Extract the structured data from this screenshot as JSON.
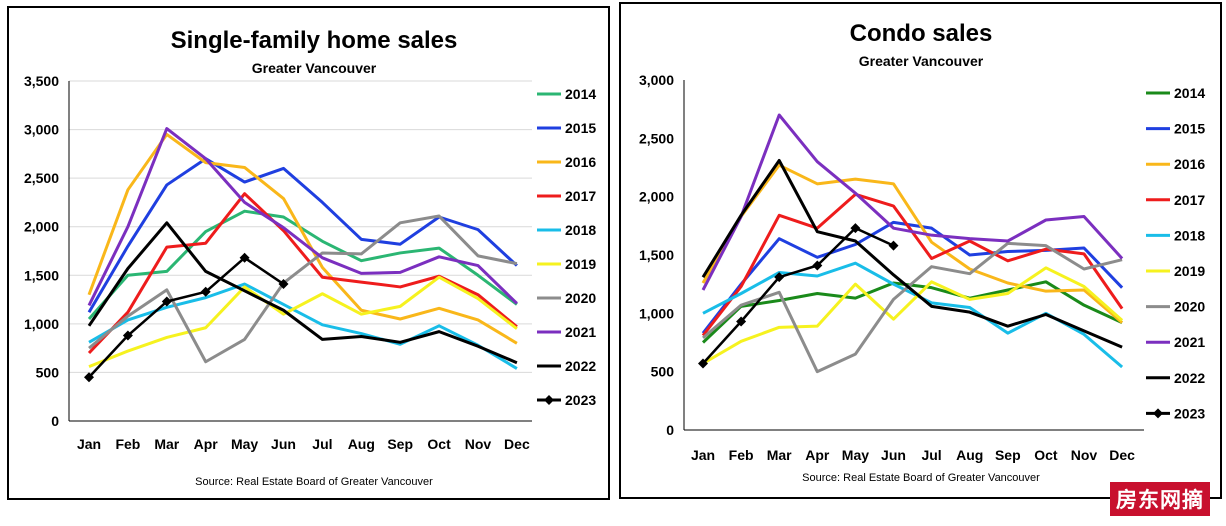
{
  "months": [
    "Jan",
    "Feb",
    "Mar",
    "Apr",
    "May",
    "Jun",
    "Jul",
    "Aug",
    "Sep",
    "Oct",
    "Nov",
    "Dec"
  ],
  "chart_data": [
    {
      "type": "line",
      "title": "Single-family home sales",
      "subtitle": "Greater Vancouver",
      "source": "Source: Real Estate Board of Greater Vancouver",
      "ylim": [
        0,
        3500
      ],
      "yticks": [
        0,
        500,
        1000,
        1500,
        2000,
        2500,
        3000,
        3500
      ],
      "ytick_labels": [
        "0",
        "500",
        "1,000",
        "1,500",
        "2,000",
        "2,500",
        "3,000",
        "3,500"
      ],
      "grid": true,
      "legend_position": "right",
      "series": [
        {
          "name": "2014",
          "color": "#2bb673",
          "values": [
            1050,
            1500,
            1540,
            1950,
            2160,
            2100,
            1850,
            1650,
            1730,
            1780,
            1500,
            1200
          ]
        },
        {
          "name": "2015",
          "color": "#1f3fe0",
          "values": [
            1120,
            1800,
            2430,
            2700,
            2460,
            2600,
            2250,
            1870,
            1820,
            2100,
            1970,
            1600
          ]
        },
        {
          "name": "2016",
          "color": "#f9b71a",
          "values": [
            1300,
            2380,
            2950,
            2660,
            2610,
            2290,
            1580,
            1140,
            1050,
            1160,
            1040,
            800
          ]
        },
        {
          "name": "2017",
          "color": "#ee1c1c",
          "values": [
            700,
            1120,
            1790,
            1830,
            2340,
            1960,
            1480,
            1430,
            1380,
            1490,
            1300,
            970
          ]
        },
        {
          "name": "2018",
          "color": "#19bde8",
          "values": [
            810,
            1040,
            1170,
            1270,
            1410,
            1200,
            990,
            900,
            790,
            980,
            780,
            540
          ]
        },
        {
          "name": "2019",
          "color": "#f6f21f",
          "values": [
            560,
            720,
            860,
            960,
            1380,
            1100,
            1310,
            1100,
            1180,
            1480,
            1260,
            950
          ]
        },
        {
          "name": "2020",
          "color": "#8c8c8c",
          "values": [
            750,
            1080,
            1350,
            610,
            840,
            1420,
            1730,
            1720,
            2040,
            2110,
            1700,
            1620
          ]
        },
        {
          "name": "2021",
          "color": "#7b2fbf",
          "values": [
            1190,
            2000,
            3010,
            2700,
            2250,
            1990,
            1680,
            1520,
            1530,
            1690,
            1600,
            1210
          ]
        },
        {
          "name": "2022",
          "color": "#000000",
          "values": [
            980,
            1570,
            2040,
            1540,
            1340,
            1140,
            840,
            870,
            810,
            920,
            770,
            600
          ]
        },
        {
          "name": "2023",
          "color": "#000000",
          "marker": true,
          "values": [
            450,
            880,
            1230,
            1330,
            1680,
            1410
          ]
        }
      ]
    },
    {
      "type": "line",
      "title": "Condo sales",
      "subtitle": "Greater Vancouver",
      "source": "Source: Real Estate Board of Greater Vancouver",
      "ylim": [
        0,
        3000
      ],
      "yticks": [
        0,
        500,
        1000,
        1500,
        2000,
        2500,
        3000
      ],
      "ytick_labels": [
        "0",
        "500",
        "1,000",
        "1,500",
        "2,000",
        "2,500",
        "3,000"
      ],
      "grid": false,
      "legend_position": "right",
      "series": [
        {
          "name": "2014",
          "color": "#1a8a1a",
          "values": [
            750,
            1060,
            1110,
            1170,
            1130,
            1260,
            1220,
            1130,
            1200,
            1270,
            1070,
            920
          ]
        },
        {
          "name": "2015",
          "color": "#1f3fe0",
          "values": [
            830,
            1250,
            1640,
            1480,
            1590,
            1780,
            1730,
            1500,
            1530,
            1540,
            1560,
            1220
          ]
        },
        {
          "name": "2016",
          "color": "#f9b71a",
          "values": [
            1260,
            1830,
            2270,
            2110,
            2150,
            2110,
            1610,
            1380,
            1260,
            1190,
            1200,
            920
          ]
        },
        {
          "name": "2017",
          "color": "#ee1c1c",
          "values": [
            810,
            1230,
            1840,
            1730,
            2020,
            1920,
            1470,
            1620,
            1450,
            1550,
            1510,
            1040
          ]
        },
        {
          "name": "2018",
          "color": "#19bde8",
          "values": [
            1000,
            1170,
            1350,
            1320,
            1430,
            1250,
            1090,
            1050,
            830,
            1000,
            820,
            540
          ]
        },
        {
          "name": "2019",
          "color": "#f6f21f",
          "values": [
            570,
            760,
            880,
            890,
            1250,
            950,
            1270,
            1120,
            1170,
            1390,
            1230,
            940
          ]
        },
        {
          "name": "2020",
          "color": "#8c8c8c",
          "values": [
            790,
            1070,
            1180,
            500,
            650,
            1120,
            1400,
            1340,
            1600,
            1580,
            1380,
            1460
          ]
        },
        {
          "name": "2021",
          "color": "#7b2fbf",
          "values": [
            1200,
            1830,
            2700,
            2300,
            2030,
            1730,
            1670,
            1640,
            1620,
            1800,
            1830,
            1470
          ]
        },
        {
          "name": "2022",
          "color": "#000000",
          "values": [
            1310,
            1840,
            2310,
            1700,
            1620,
            1330,
            1060,
            1010,
            890,
            990,
            850,
            710
          ]
        },
        {
          "name": "2023",
          "color": "#000000",
          "marker": true,
          "values": [
            570,
            930,
            1310,
            1410,
            1730,
            1580
          ]
        }
      ]
    }
  ],
  "watermark": "房东网摘"
}
